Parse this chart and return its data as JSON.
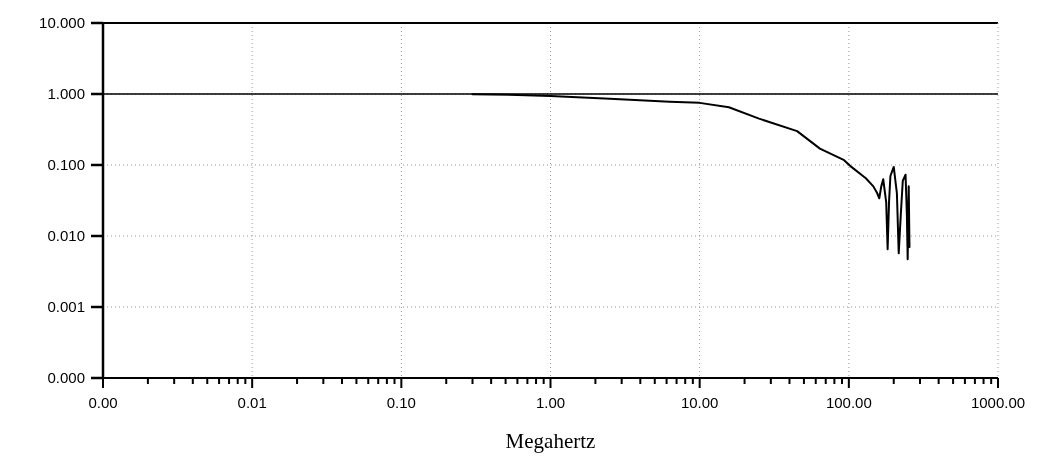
{
  "chart_data": {
    "type": "line",
    "xlabel": "Megahertz",
    "log": "xy",
    "grid": true,
    "line_style": "solid",
    "xlim": [
      0.001,
      1000
    ],
    "ylim": [
      0.0001,
      10
    ],
    "xticks": [
      {
        "value": 0.001,
        "label": "0.00"
      },
      {
        "value": 0.002,
        "label": null
      },
      {
        "value": 0.003,
        "label": null
      },
      {
        "value": 0.004,
        "label": null
      },
      {
        "value": 0.005,
        "label": null
      },
      {
        "value": 0.006,
        "label": null
      },
      {
        "value": 0.007,
        "label": null
      },
      {
        "value": 0.008,
        "label": null
      },
      {
        "value": 0.009,
        "label": null
      },
      {
        "value": 0.01,
        "label": "0.01"
      },
      {
        "value": 0.02,
        "label": null
      },
      {
        "value": 0.03,
        "label": null
      },
      {
        "value": 0.04,
        "label": null
      },
      {
        "value": 0.05,
        "label": null
      },
      {
        "value": 0.06,
        "label": null
      },
      {
        "value": 0.07,
        "label": null
      },
      {
        "value": 0.08,
        "label": null
      },
      {
        "value": 0.09,
        "label": null
      },
      {
        "value": 0.1,
        "label": "0.10"
      },
      {
        "value": 0.2,
        "label": null
      },
      {
        "value": 0.3,
        "label": null
      },
      {
        "value": 0.4,
        "label": null
      },
      {
        "value": 0.5,
        "label": null
      },
      {
        "value": 0.6,
        "label": null
      },
      {
        "value": 0.7,
        "label": null
      },
      {
        "value": 0.8,
        "label": null
      },
      {
        "value": 0.9,
        "label": null
      },
      {
        "value": 1,
        "label": "1.00"
      },
      {
        "value": 2,
        "label": null
      },
      {
        "value": 3,
        "label": null
      },
      {
        "value": 4,
        "label": null
      },
      {
        "value": 5,
        "label": null
      },
      {
        "value": 6,
        "label": null
      },
      {
        "value": 7,
        "label": null
      },
      {
        "value": 8,
        "label": null
      },
      {
        "value": 9,
        "label": null
      },
      {
        "value": 10,
        "label": "10.00"
      },
      {
        "value": 20,
        "label": null
      },
      {
        "value": 30,
        "label": null
      },
      {
        "value": 40,
        "label": null
      },
      {
        "value": 50,
        "label": null
      },
      {
        "value": 60,
        "label": null
      },
      {
        "value": 70,
        "label": null
      },
      {
        "value": 80,
        "label": null
      },
      {
        "value": 90,
        "label": null
      },
      {
        "value": 100,
        "label": "100.00"
      },
      {
        "value": 200,
        "label": null
      },
      {
        "value": 300,
        "label": null
      },
      {
        "value": 400,
        "label": null
      },
      {
        "value": 500,
        "label": null
      },
      {
        "value": 600,
        "label": null
      },
      {
        "value": 700,
        "label": null
      },
      {
        "value": 800,
        "label": null
      },
      {
        "value": 900,
        "label": null
      },
      {
        "value": 1000,
        "label": "1000.00"
      }
    ],
    "yticks": [
      {
        "value": 0.0001,
        "label": "0.000"
      },
      {
        "value": 0.001,
        "label": "0.001"
      },
      {
        "value": 0.01,
        "label": "0.010"
      },
      {
        "value": 0.1,
        "label": "0.100"
      },
      {
        "value": 1,
        "label": "1.000"
      },
      {
        "value": 10,
        "label": "10.000"
      }
    ],
    "ref_lines": [
      {
        "axis": "y",
        "value": 1,
        "color": "#000000"
      }
    ],
    "series": [
      {
        "color": "#000000",
        "x": [
          0.3,
          0.6,
          1,
          2.5,
          6.3,
          10,
          15.7,
          25,
          45,
          64,
          93,
          104,
          130,
          146,
          155,
          160,
          165,
          170,
          178,
          182,
          186,
          190,
          200,
          210,
          216,
          223,
          230,
          240,
          245,
          248,
          252,
          255
        ],
        "values": [
          0.99,
          0.97,
          0.94,
          0.86,
          0.78,
          0.75,
          0.65,
          0.45,
          0.3,
          0.17,
          0.117,
          0.094,
          0.065,
          0.05,
          0.04,
          0.034,
          0.05,
          0.063,
          0.03,
          0.0065,
          0.03,
          0.07,
          0.094,
          0.04,
          0.0057,
          0.02,
          0.06,
          0.073,
          0.02,
          0.0047,
          0.05,
          0.007
        ]
      }
    ]
  }
}
